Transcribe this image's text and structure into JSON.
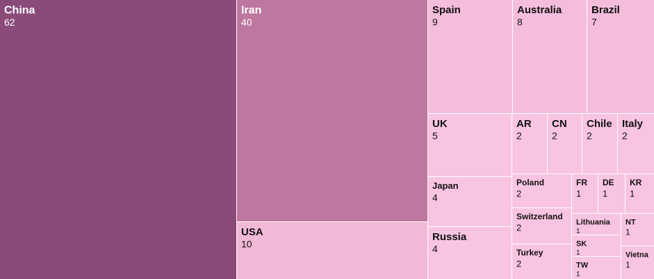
{
  "chart_data": {
    "type": "treemap",
    "title": "",
    "series": [
      {
        "name": "China",
        "value": 62
      },
      {
        "name": "Iran",
        "value": 40
      },
      {
        "name": "USA",
        "value": 10
      },
      {
        "name": "Spain",
        "value": 9
      },
      {
        "name": "Australia",
        "value": 8
      },
      {
        "name": "Brazil",
        "value": 7
      },
      {
        "name": "UK",
        "value": 5
      },
      {
        "name": "AR",
        "value": 2
      },
      {
        "name": "CN",
        "value": 2
      },
      {
        "name": "Chile",
        "value": 2
      },
      {
        "name": "Italy",
        "value": 2
      },
      {
        "name": "Japan",
        "value": 4
      },
      {
        "name": "Poland",
        "value": 2
      },
      {
        "name": "FR",
        "value": 1
      },
      {
        "name": "DE",
        "value": 1
      },
      {
        "name": "KR",
        "value": 1
      },
      {
        "name": "Russia",
        "value": 4
      },
      {
        "name": "Switzerland",
        "value": 2
      },
      {
        "name": "Lithuania",
        "value": 1
      },
      {
        "name": "NT",
        "value": 1
      },
      {
        "name": "SK",
        "value": 1
      },
      {
        "name": "Turkey",
        "value": 2
      },
      {
        "name": "TW",
        "value": 1
      },
      {
        "name": "Vietna",
        "value": 1
      }
    ],
    "colors": {
      "darkest": "#8a4b7b",
      "dark": "#be779f",
      "mid": "#f2b8d8",
      "light": "#f5bddc",
      "lightest": "#f8c4e2"
    }
  }
}
